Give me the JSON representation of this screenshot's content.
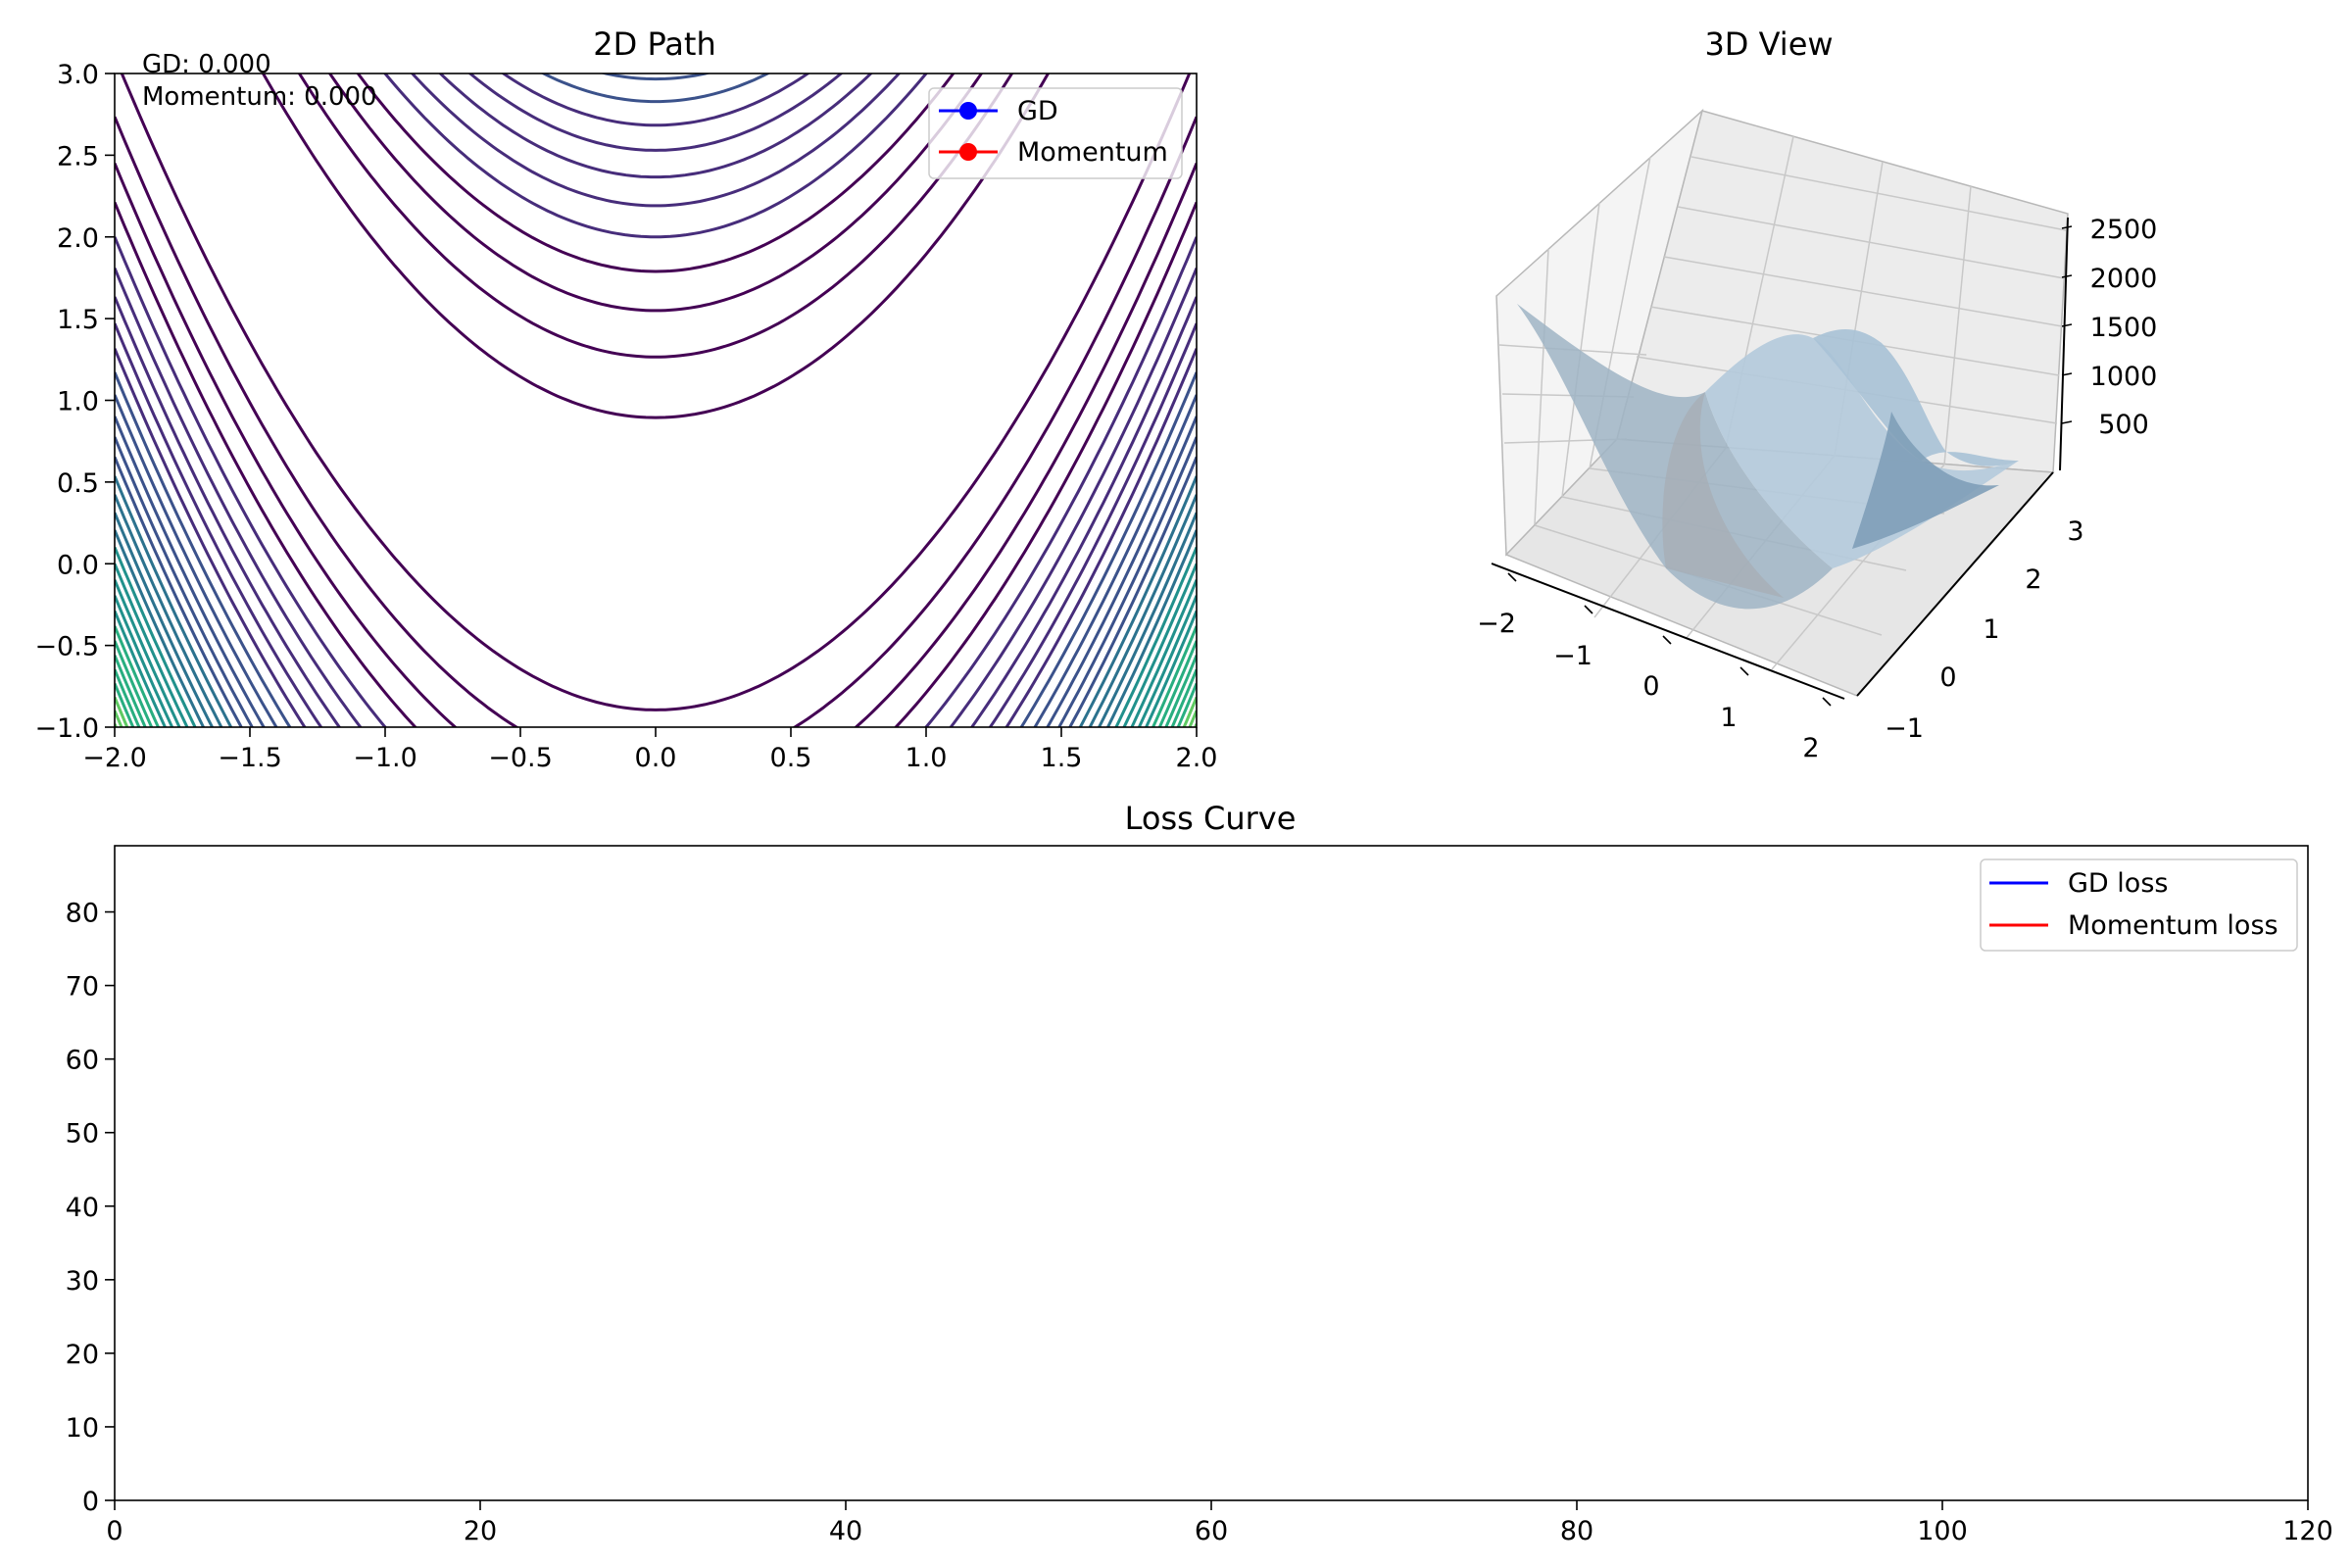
{
  "chart_data": [
    {
      "type": "contour",
      "title": "2D Path",
      "xlim": [
        -2.0,
        2.0
      ],
      "ylim": [
        -1.0,
        3.0
      ],
      "xticks": [
        "−2.0",
        "−1.5",
        "−1.0",
        "−0.5",
        "0.0",
        "0.5",
        "1.0",
        "1.5",
        "2.0"
      ],
      "yticks": [
        "−1.0",
        "−0.5",
        "0.0",
        "0.5",
        "1.0",
        "1.5",
        "2.0",
        "2.5",
        "3.0"
      ],
      "function": "rosenbrock",
      "colormap": "viridis",
      "legend_position": "upper right",
      "series": [
        {
          "name": "GD",
          "color": "#0000ff",
          "x": [],
          "y": []
        },
        {
          "name": "Momentum",
          "color": "#ff0000",
          "x": [],
          "y": []
        }
      ],
      "annotations": [
        "GD: 0.000",
        "Momentum: 0.000"
      ]
    },
    {
      "type": "surface3d",
      "title": "3D View",
      "xticks": [
        "−2",
        "−1",
        "0",
        "1",
        "2"
      ],
      "yticks": [
        "−1",
        "0",
        "1",
        "2",
        "3"
      ],
      "zticks": [
        "500",
        "1000",
        "1500",
        "2000",
        "2500"
      ],
      "surface_color": "#8aaec8"
    },
    {
      "type": "line",
      "title": "Loss Curve",
      "xlim": [
        0,
        120
      ],
      "ylim": [
        0,
        89
      ],
      "xticks": [
        "0",
        "20",
        "40",
        "60",
        "80",
        "100",
        "120"
      ],
      "yticks": [
        "0",
        "10",
        "20",
        "30",
        "40",
        "50",
        "60",
        "70",
        "80"
      ],
      "legend_position": "upper right",
      "series": [
        {
          "name": "GD loss",
          "color": "#0000ff",
          "x": [],
          "y": []
        },
        {
          "name": "Momentum loss",
          "color": "#ff0000",
          "x": [],
          "y": []
        }
      ]
    }
  ]
}
